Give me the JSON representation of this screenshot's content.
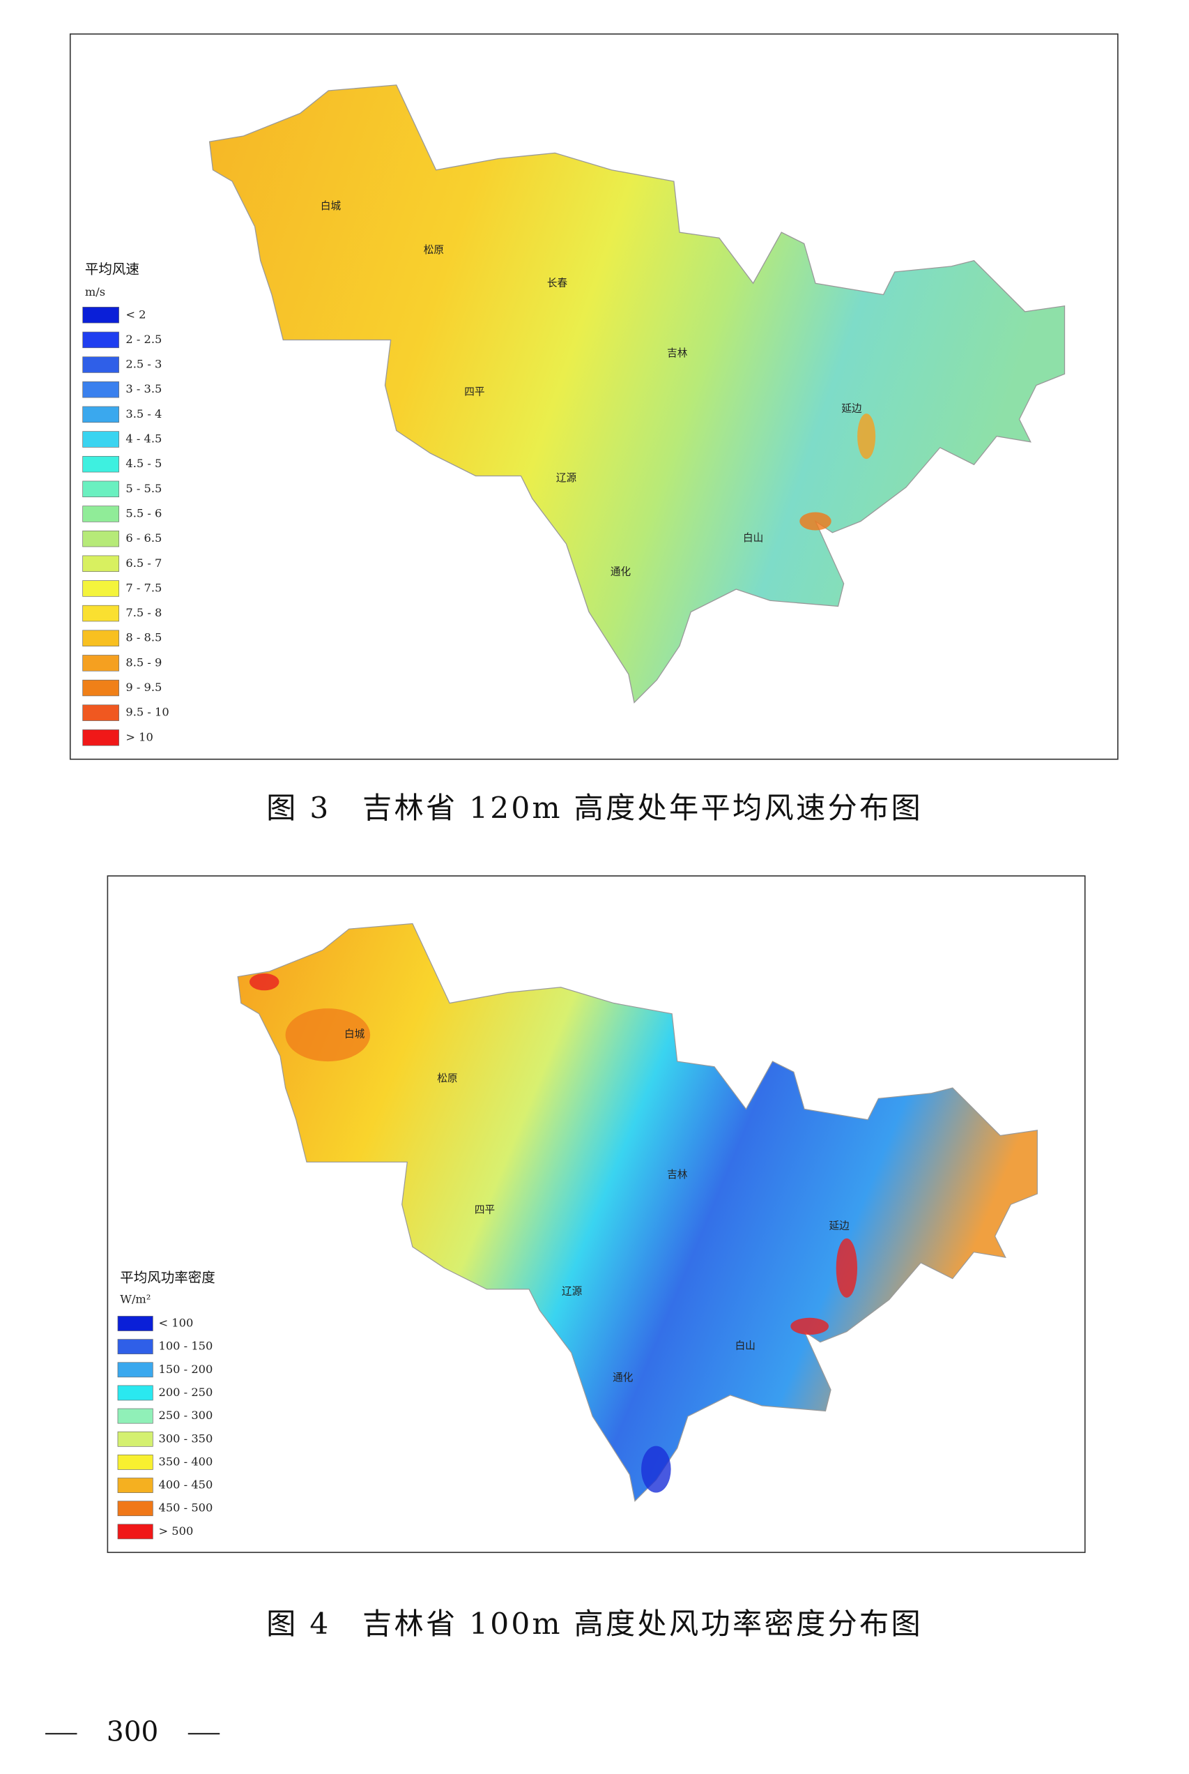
{
  "figures": [
    {
      "legend": {
        "title": "平均风速",
        "unit": "m/s",
        "items": [
          {
            "label": "< 2",
            "color": "#0a1fd8"
          },
          {
            "label": "2 - 2.5",
            "color": "#1f3ef0"
          },
          {
            "label": "2.5 - 3",
            "color": "#2f5fe8"
          },
          {
            "label": "3 - 3.5",
            "color": "#3a80ee"
          },
          {
            "label": "3.5 - 4",
            "color": "#3aa8ee"
          },
          {
            "label": "4 - 4.5",
            "color": "#3ad4f0"
          },
          {
            "label": "4.5 - 5",
            "color": "#3ef0e0"
          },
          {
            "label": "5 - 5.5",
            "color": "#6af0c0"
          },
          {
            "label": "5.5 - 6",
            "color": "#90ec98"
          },
          {
            "label": "6 - 6.5",
            "color": "#b6ea78"
          },
          {
            "label": "6.5 - 7",
            "color": "#d8f060"
          },
          {
            "label": "7 - 7.5",
            "color": "#f4f43c"
          },
          {
            "label": "7.5 - 8",
            "color": "#fae030"
          },
          {
            "label": "8 - 8.5",
            "color": "#f8c020"
          },
          {
            "label": "8.5 - 9",
            "color": "#f5a020"
          },
          {
            "label": "9 - 9.5",
            "color": "#f08018"
          },
          {
            "label": "9.5 - 10",
            "color": "#f05820"
          },
          {
            "label": "> 10",
            "color": "#f01818"
          }
        ]
      },
      "cities": [
        "白城",
        "松原",
        "长春",
        "吉林",
        "四平",
        "延边",
        "辽源",
        "白山",
        "通化"
      ],
      "caption": "图 3　吉林省 120m 高度处年平均风速分布图"
    },
    {
      "legend": {
        "title": "平均风功率密度",
        "unit": "W/m²",
        "items": [
          {
            "label": "< 100",
            "color": "#0a1fd8"
          },
          {
            "label": "100 - 150",
            "color": "#2f5fe8"
          },
          {
            "label": "150 - 200",
            "color": "#3aa8ee"
          },
          {
            "label": "200 - 250",
            "color": "#2ae8f0"
          },
          {
            "label": "250 - 300",
            "color": "#90f0b8"
          },
          {
            "label": "300 - 350",
            "color": "#d4f070"
          },
          {
            "label": "350 - 400",
            "color": "#f8f030"
          },
          {
            "label": "400 - 450",
            "color": "#f5b020"
          },
          {
            "label": "450 - 500",
            "color": "#f07818"
          },
          {
            "label": "> 500",
            "color": "#f01818"
          }
        ]
      },
      "cities": [
        "白城",
        "松原",
        "吉林",
        "四平",
        "延边",
        "辽源",
        "白山",
        "通化"
      ],
      "caption": "图 4　吉林省 100m 高度处风功率密度分布图"
    }
  ],
  "page_number": "300"
}
